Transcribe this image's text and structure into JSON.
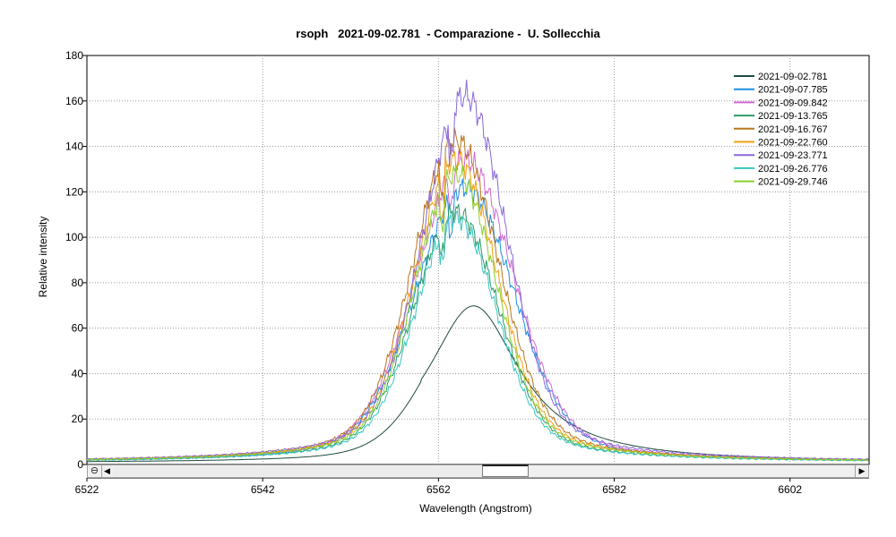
{
  "chart_data": {
    "type": "line",
    "title": "rsoph   2021-09-02.781  - Comparazione -  U. Sollecchia",
    "xlabel": "Wavelength (Angstrom)",
    "ylabel": "Relative intensity",
    "xlim": [
      6522,
      6611
    ],
    "ylim": [
      0,
      180
    ],
    "x_ticks": [
      "6522",
      "6542",
      "6562",
      "6582",
      "6602"
    ],
    "y_ticks": [
      "0",
      "20",
      "40",
      "60",
      "80",
      "100",
      "120",
      "140",
      "160",
      "180"
    ],
    "grid": true,
    "legend_position": "top-right",
    "series": [
      {
        "name": "2021-09-02.781",
        "color": "#1e4a42",
        "peak": 69,
        "peak_x": 6566,
        "sigma": 6.5
      },
      {
        "name": "2021-09-07.785",
        "color": "#1f8fe0",
        "peak": 116,
        "peak_x": 6565,
        "sigma": 5.5
      },
      {
        "name": "2021-09-09.842",
        "color": "#d26ad2",
        "peak": 128,
        "peak_x": 6565,
        "sigma": 5.4
      },
      {
        "name": "2021-09-13.765",
        "color": "#2e9a66",
        "peak": 106,
        "peak_x": 6564,
        "sigma": 4.6
      },
      {
        "name": "2021-09-16.767",
        "color": "#b8751e",
        "peak": 136,
        "peak_x": 6564,
        "sigma": 4.7
      },
      {
        "name": "2021-09-22.760",
        "color": "#f5a00f",
        "peak": 128,
        "peak_x": 6564,
        "sigma": 4.5
      },
      {
        "name": "2021-09-23.771",
        "color": "#8a68d8",
        "peak": 155,
        "peak_x": 6565,
        "sigma": 4.6
      },
      {
        "name": "2021-09-26.776",
        "color": "#36c6c0",
        "peak": 103,
        "peak_x": 6564,
        "sigma": 4.4
      },
      {
        "name": "2021-09-29.746",
        "color": "#8ccf2e",
        "peak": 122,
        "peak_x": 6564,
        "sigma": 4.4
      }
    ]
  },
  "controls": {
    "zoom_reset_symbol": "⊖",
    "scroll_left_symbol": "◀",
    "scroll_right_symbol": "▶"
  }
}
